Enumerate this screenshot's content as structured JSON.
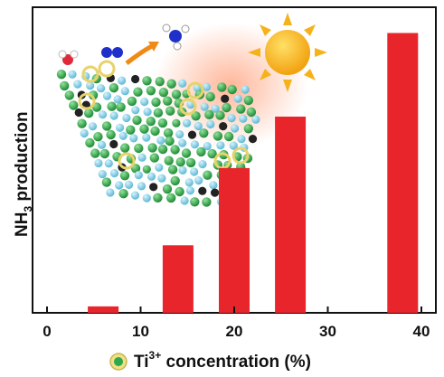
{
  "chart_data": {
    "type": "bar",
    "x": [
      6,
      14,
      20,
      26,
      38
    ],
    "values": [
      2,
      21,
      45,
      61,
      87
    ],
    "xlim": [
      0,
      40
    ],
    "ylim": [
      0,
      95
    ],
    "xticks": [
      "0",
      "10",
      "20",
      "30",
      "40"
    ],
    "ylabel": {
      "main": "NH",
      "sub": "3",
      "rest": " production"
    },
    "xlabel": {
      "ion": "Ti",
      "sup": "3+",
      "rest": " concentration (%)"
    },
    "bar_color": "#e8252b",
    "yticks_shown": false
  },
  "inset": {
    "description_icons": [
      "water-molecule-icon",
      "nitrogen-molecule-icon",
      "arrow-icon",
      "ammonia-molecule-icon",
      "sun-icon",
      "crystal-lattice-icon"
    ],
    "colors": {
      "lattice_green": "#2ea84a",
      "lattice_blue": "#7ccfe6",
      "sun": "#f6b21a",
      "glow": "#ff6a3d"
    }
  }
}
